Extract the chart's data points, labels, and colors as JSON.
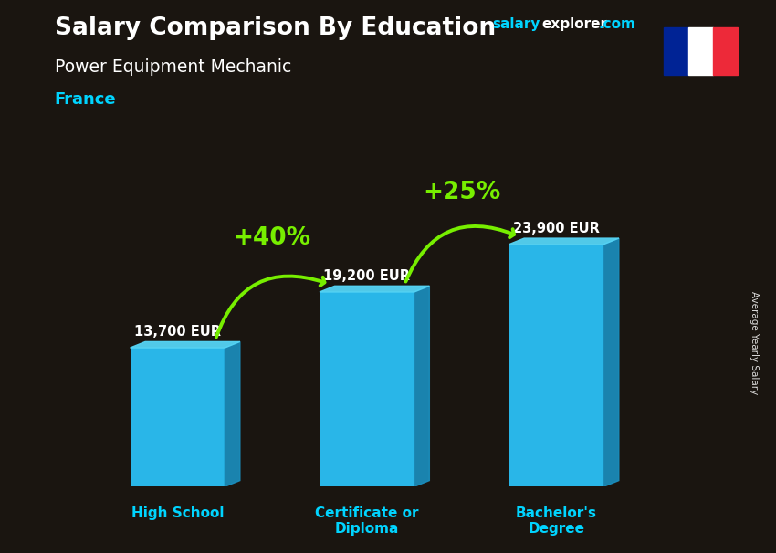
{
  "title1": "Salary Comparison By Education",
  "subtitle": "Power Equipment Mechanic",
  "country": "France",
  "categories": [
    "High School",
    "Certificate or\nDiploma",
    "Bachelor's\nDegree"
  ],
  "values": [
    13700,
    19200,
    23900
  ],
  "value_labels": [
    "13,700 EUR",
    "19,200 EUR",
    "23,900 EUR"
  ],
  "pct_labels": [
    "+40%",
    "+25%"
  ],
  "bar_color_main": "#29b6e8",
  "bar_color_light": "#55d4f5",
  "bar_color_dark": "#1a90c0",
  "bg_color": "#1a1510",
  "text_color_white": "#ffffff",
  "text_color_cyan": "#00d4ff",
  "text_color_green": "#77ee00",
  "arrow_color": "#77ee00",
  "brand_text": "salaryexplorer.com",
  "brand_salary": "salary",
  "brand_explorer": "explorer",
  "brand_com": ".com",
  "ylabel_text": "Average Yearly Salary",
  "ylim": [
    0,
    30000
  ],
  "bar_width": 0.5,
  "figsize": [
    8.5,
    6.06
  ],
  "dpi": 100,
  "x_positions": [
    0,
    1,
    2
  ],
  "flag_blue": "#002395",
  "flag_white": "#FFFFFF",
  "flag_red": "#ED2939"
}
